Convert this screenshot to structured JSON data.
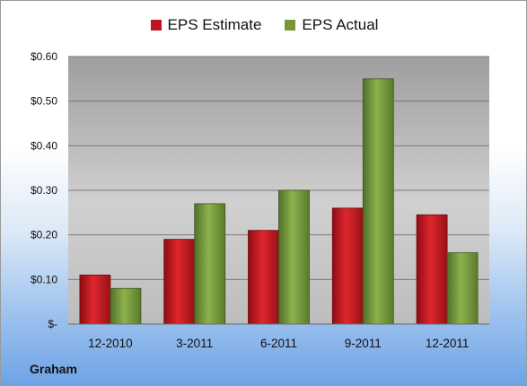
{
  "legend": {
    "estimate_label": "EPS Estimate",
    "actual_label": "EPS Actual"
  },
  "footer": {
    "company": "Graham"
  },
  "colors": {
    "estimate": "#c0141c",
    "actual": "#76973a"
  },
  "chart_data": {
    "type": "bar",
    "categories": [
      "12-2010",
      "3-2011",
      "6-2011",
      "9-2011",
      "12-2011"
    ],
    "series": [
      {
        "name": "EPS Estimate",
        "values": [
          0.11,
          0.19,
          0.21,
          0.26,
          0.245
        ]
      },
      {
        "name": "EPS Actual",
        "values": [
          0.08,
          0.27,
          0.3,
          0.55,
          0.16
        ]
      }
    ],
    "ylim": [
      0,
      0.6
    ],
    "yticks": [
      0,
      0.1,
      0.2,
      0.3,
      0.4,
      0.5,
      0.6
    ],
    "ytick_labels": [
      "$-",
      "$0.10",
      "$0.20",
      "$0.30",
      "$0.40",
      "$0.50",
      "$0.60"
    ],
    "grid": true,
    "legend_position": "top"
  }
}
